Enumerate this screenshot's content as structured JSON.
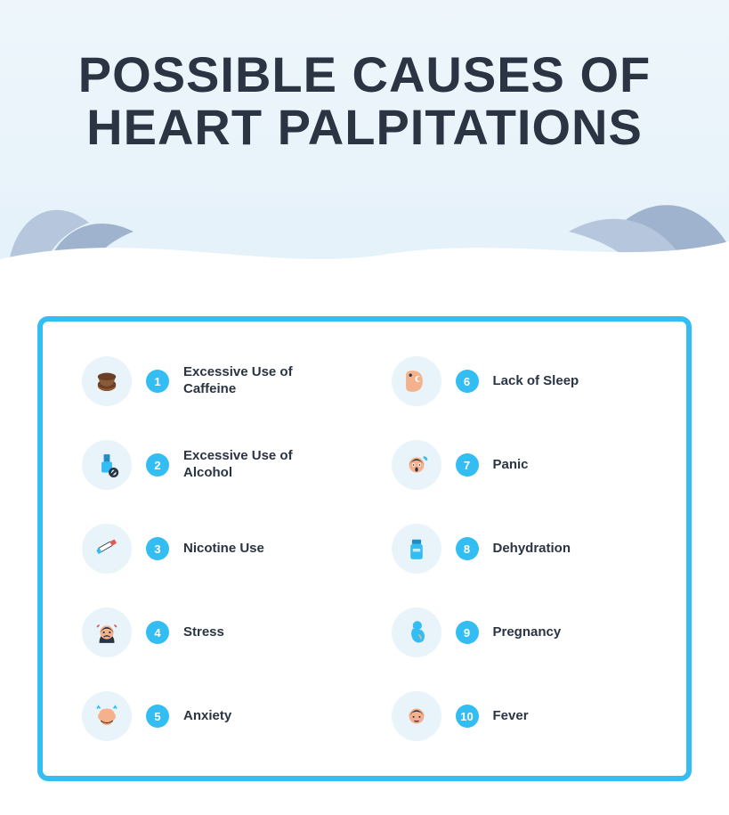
{
  "type": "infographic",
  "title": "POSSIBLE CAUSES OF HEART PALPITATIONS",
  "title_color": "#2a3442",
  "title_fontsize": 56,
  "hero_bg_top": "#eef6fb",
  "hero_bg_bottom": "#e4f1f9",
  "leaf_fill": "#b6c6dd",
  "leaf_fill_dark": "#9fb3cf",
  "card_border_color": "#33bdf2",
  "card_bg": "#ffffff",
  "icon_circle_bg": "#e9f4fa",
  "number_badge_bg": "#33bdf2",
  "number_badge_text": "#ffffff",
  "label_color": "#2a3442",
  "label_fontsize": 15,
  "items": [
    {
      "n": "1",
      "label": "Excessive Use of Caffeine",
      "icon": "coffee"
    },
    {
      "n": "6",
      "label": "Lack of Sleep",
      "icon": "sleep"
    },
    {
      "n": "2",
      "label": "Excessive Use of Alcohol",
      "icon": "alcohol"
    },
    {
      "n": "7",
      "label": "Panic",
      "icon": "panic"
    },
    {
      "n": "3",
      "label": "Nicotine Use",
      "icon": "nicotine"
    },
    {
      "n": "8",
      "label": "Dehydration",
      "icon": "dehydration"
    },
    {
      "n": "4",
      "label": "Stress",
      "icon": "stress"
    },
    {
      "n": "9",
      "label": "Pregnancy",
      "icon": "pregnancy"
    },
    {
      "n": "5",
      "label": "Anxiety",
      "icon": "anxiety"
    },
    {
      "n": "10",
      "label": "Fever",
      "icon": "fever"
    }
  ],
  "icon_palette": {
    "skin": "#f4b18b",
    "hair": "#2a3442",
    "blue": "#33bdf2",
    "blue_dark": "#1f8dc5",
    "brown": "#8a5a3a",
    "brown_dark": "#6b3f25",
    "red": "#e05a5a",
    "pink": "#f0a8a8",
    "white": "#ffffff"
  }
}
